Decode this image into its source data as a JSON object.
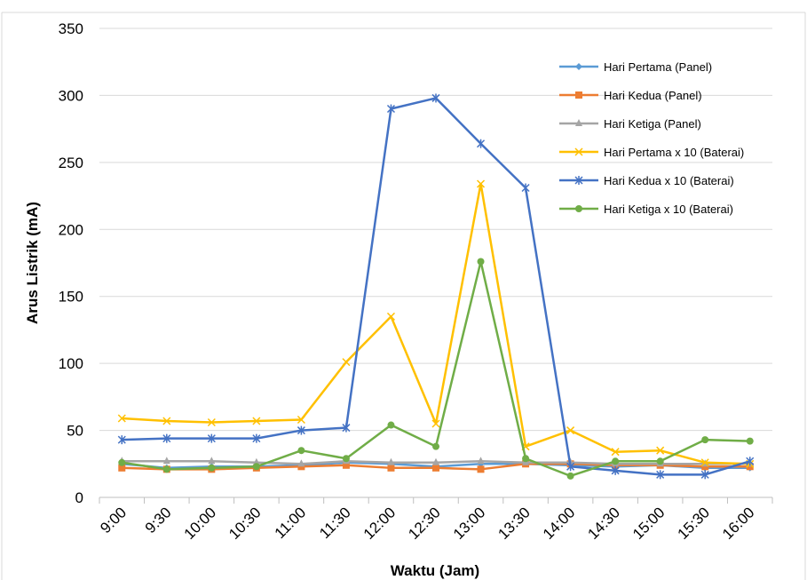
{
  "chart_data": {
    "type": "line",
    "title": "",
    "xlabel": "Waktu (Jam)",
    "ylabel": "Arus Listrik (mA)",
    "ylim": [
      0,
      350
    ],
    "yticks": [
      0,
      50,
      100,
      150,
      200,
      250,
      300,
      350
    ],
    "grid": "horizontal",
    "legend_position": "right",
    "categories": [
      "9:00",
      "9:30",
      "10:00",
      "10:30",
      "11:00",
      "11:30",
      "12:00",
      "12:30",
      "13:00",
      "13:30",
      "14:00",
      "14:30",
      "15:00",
      "15:30",
      "16:00"
    ],
    "series": [
      {
        "name": "Hari Pertama (Panel)",
        "color": "#5B9BD5",
        "marker": "diamond",
        "values": [
          25,
          22,
          23,
          23,
          24,
          26,
          25,
          23,
          25,
          25,
          24,
          23,
          24,
          22,
          22
        ]
      },
      {
        "name": "Hari Kedua (Panel)",
        "color": "#ED7D31",
        "marker": "square",
        "values": [
          22,
          21,
          21,
          22,
          23,
          24,
          22,
          22,
          21,
          25,
          25,
          24,
          24,
          23,
          23
        ]
      },
      {
        "name": "Hari Ketiga (Panel)",
        "color": "#A5A5A5",
        "marker": "triangle",
        "values": [
          27,
          27,
          27,
          26,
          25,
          27,
          26,
          26,
          27,
          26,
          26,
          25,
          25,
          25,
          25
        ]
      },
      {
        "name": "Hari Pertama x 10 (Baterai)",
        "color": "#FFC000",
        "marker": "x",
        "values": [
          59,
          57,
          56,
          57,
          58,
          101,
          135,
          55,
          234,
          38,
          50,
          34,
          35,
          26,
          25
        ]
      },
      {
        "name": "Hari Kedua x 10 (Baterai)",
        "color": "#4472C4",
        "marker": "star",
        "values": [
          43,
          44,
          44,
          44,
          50,
          52,
          290,
          298,
          264,
          231,
          23,
          20,
          17,
          17,
          27
        ]
      },
      {
        "name": "Hari Ketiga x 10 (Baterai)",
        "color": "#70AD47",
        "marker": "circle",
        "values": [
          26,
          21,
          22,
          23,
          35,
          29,
          54,
          38,
          176,
          29,
          16,
          27,
          27,
          43,
          42
        ]
      }
    ]
  }
}
